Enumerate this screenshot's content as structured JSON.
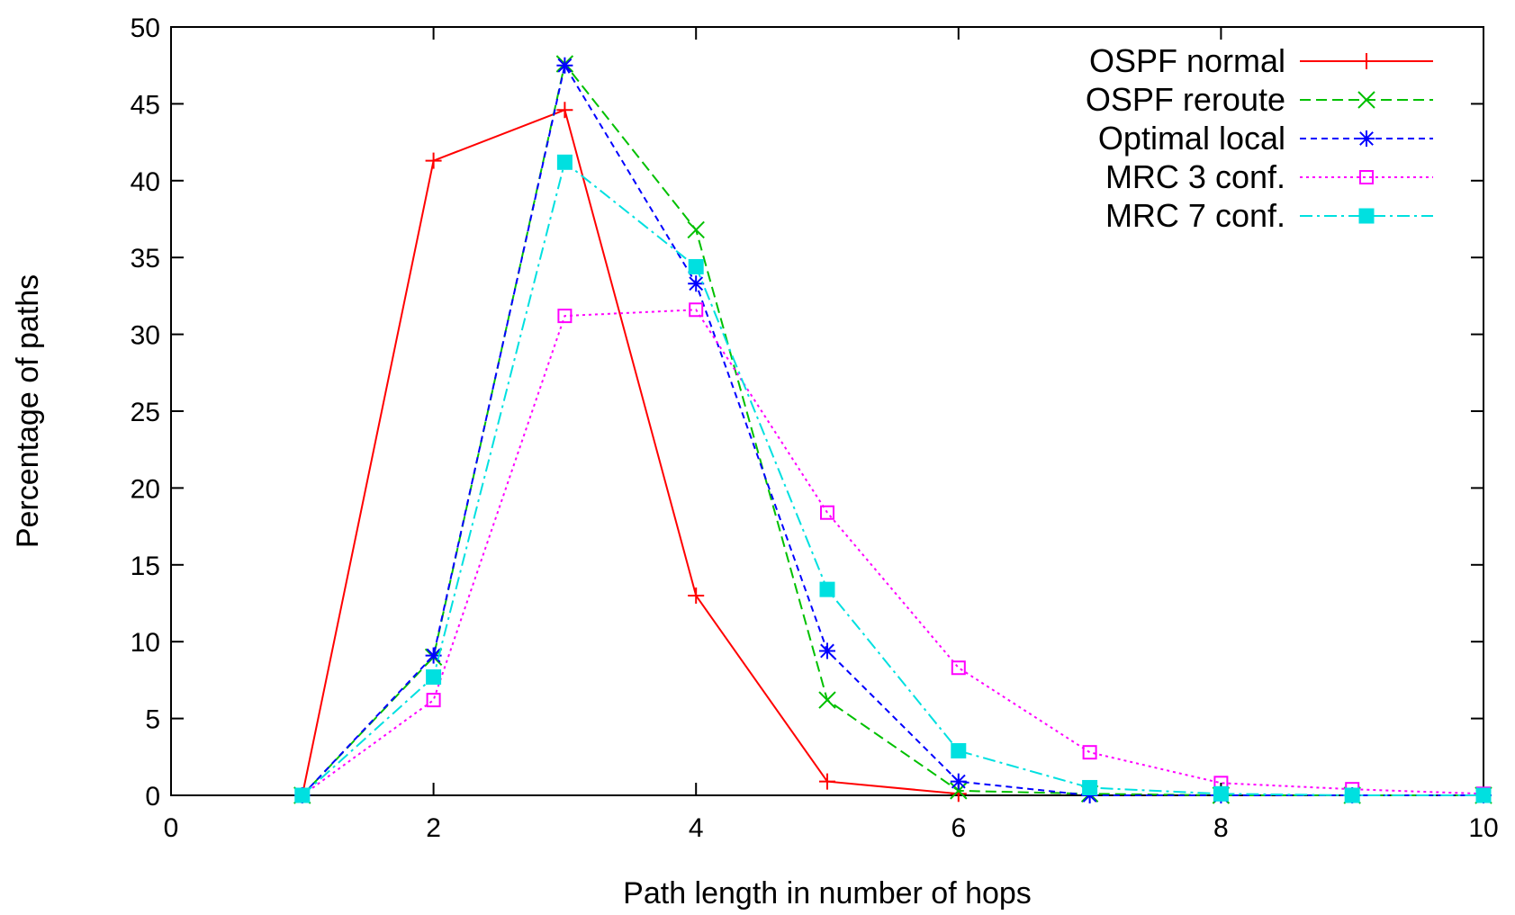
{
  "chart_data": {
    "type": "line",
    "title": "",
    "xlabel": "Path length in number of hops",
    "ylabel": "Percentage of paths",
    "xlim": [
      0,
      10
    ],
    "ylim": [
      0,
      50
    ],
    "xticks": [
      0,
      2,
      4,
      6,
      8,
      10
    ],
    "yticks": [
      0,
      5,
      10,
      15,
      20,
      25,
      30,
      35,
      40,
      45,
      50
    ],
    "grid": false,
    "legend_position": "top-right",
    "series": [
      {
        "name": "OSPF normal",
        "color": "#ff0000",
        "dash": "solid",
        "marker": "plus",
        "x": [
          1,
          2,
          3,
          4,
          5,
          6
        ],
        "y": [
          0,
          41.3,
          44.6,
          13.0,
          0.9,
          0.1
        ]
      },
      {
        "name": "OSPF reroute",
        "color": "#00c000",
        "dash": "dashed",
        "marker": "cross",
        "x": [
          1,
          2,
          3,
          4,
          5,
          6,
          7,
          8,
          9,
          10
        ],
        "y": [
          0,
          9.0,
          47.6,
          36.8,
          6.2,
          0.3,
          0.1,
          0,
          0,
          0
        ]
      },
      {
        "name": "Optimal local",
        "color": "#0000ff",
        "dash": "short-dashed",
        "marker": "star",
        "x": [
          1,
          2,
          3,
          4,
          5,
          6,
          7,
          8,
          9,
          10
        ],
        "y": [
          0,
          9.1,
          47.5,
          33.3,
          9.4,
          0.9,
          0.0,
          0,
          0,
          0
        ]
      },
      {
        "name": "MRC 3 conf.",
        "color": "#ff00ff",
        "dash": "dotted",
        "marker": "open-square",
        "x": [
          1,
          2,
          3,
          4,
          5,
          6,
          7,
          8,
          9,
          10
        ],
        "y": [
          0,
          6.2,
          31.2,
          31.6,
          18.4,
          8.3,
          2.8,
          0.8,
          0.4,
          0.1
        ]
      },
      {
        "name": "MRC 7 conf.",
        "color": "#00e0e0",
        "dash": "dash-dot",
        "marker": "filled-square",
        "x": [
          1,
          2,
          3,
          4,
          5,
          6,
          7,
          8,
          9,
          10
        ],
        "y": [
          0,
          7.7,
          41.2,
          34.4,
          13.4,
          2.9,
          0.5,
          0.1,
          0,
          0
        ]
      }
    ]
  }
}
